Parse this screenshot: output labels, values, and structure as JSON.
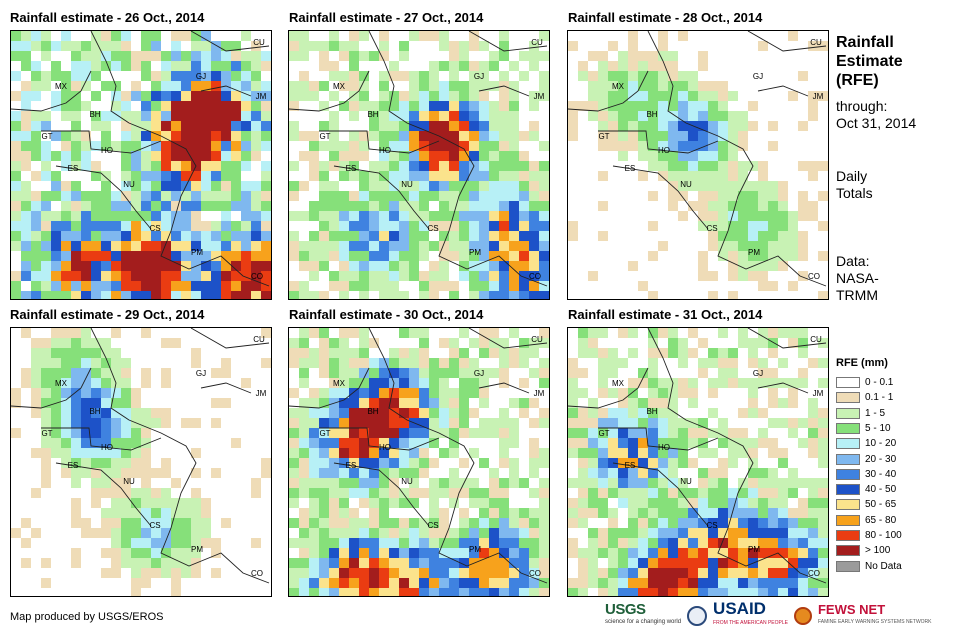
{
  "panels": [
    {
      "title": "Rainfall estimate - 26 Oct., 2014",
      "intensity": "heavy"
    },
    {
      "title": "Rainfall estimate - 27 Oct., 2014",
      "intensity": "moderate"
    },
    {
      "title": "Rainfall estimate - 28 Oct., 2014",
      "intensity": "light"
    },
    {
      "title": "Rainfall estimate - 29 Oct., 2014",
      "intensity": "light"
    },
    {
      "title": "Rainfall estimate - 30 Oct., 2014",
      "intensity": "moderate"
    },
    {
      "title": "Rainfall estimate - 31 Oct., 2014",
      "intensity": "moderate"
    }
  ],
  "country_labels": [
    "CU",
    "MX",
    "BH",
    "GT",
    "HO",
    "ES",
    "NU",
    "CS",
    "PM",
    "CO",
    "JM",
    "GJ"
  ],
  "side_panel": {
    "title_line1": "Rainfall",
    "title_line2": "Estimate",
    "title_line3": "(RFE)",
    "through_label": "through:",
    "through_date": "Oct 31, 2014",
    "daily_line1": "Daily",
    "daily_line2": "Totals",
    "source_line1": "Data:",
    "source_line2": "NASA-",
    "source_line3": "TRMM"
  },
  "legend": {
    "title": "RFE (mm)",
    "items": [
      {
        "label": "0 - 0.1",
        "color": "#ffffff"
      },
      {
        "label": "0.1 - 1",
        "color": "#efdcb7"
      },
      {
        "label": "1 - 5",
        "color": "#c8f2b4"
      },
      {
        "label": "5 - 10",
        "color": "#86e07a"
      },
      {
        "label": "10 - 20",
        "color": "#b7f0f6"
      },
      {
        "label": "20 - 30",
        "color": "#7fb8ef"
      },
      {
        "label": "30 - 40",
        "color": "#3f82e0"
      },
      {
        "label": "40 - 50",
        "color": "#1d52c8"
      },
      {
        "label": "50 - 65",
        "color": "#fbe38c"
      },
      {
        "label": "65 - 80",
        "color": "#f7a21c"
      },
      {
        "label": "80 - 100",
        "color": "#ea3c12"
      },
      {
        "label": "> 100",
        "color": "#a31d1d"
      },
      {
        "label": "No Data",
        "color": "#9b9b9b"
      }
    ]
  },
  "credit": "Map produced by USGS/EROS",
  "logos": {
    "usgs": "USGS",
    "usgs_tagline": "science for a changing world",
    "usaid": "USAID",
    "usaid_tagline": "FROM THE AMERICAN PEOPLE",
    "fews": "FEWS NET",
    "fews_tagline": "FAMINE EARLY WARNING SYSTEMS NETWORK"
  }
}
